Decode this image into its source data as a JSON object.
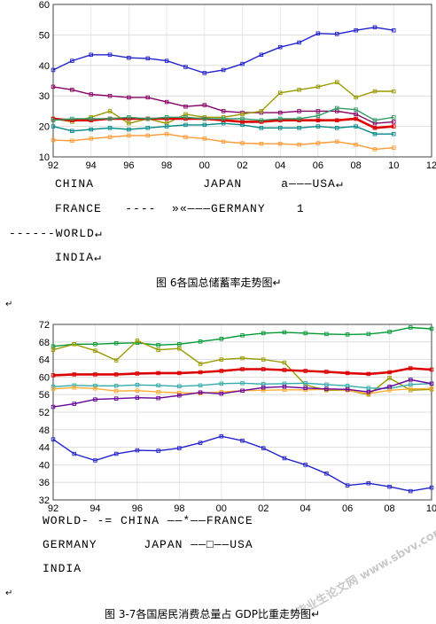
{
  "chart_data": [
    {
      "type": "line",
      "title": "",
      "xlabel": "",
      "ylabel": "",
      "xlim": [
        92,
        112
      ],
      "ylim": [
        10,
        60
      ],
      "x_ticks": [
        "92",
        "94",
        "96",
        "98",
        "00",
        "02",
        "04",
        "06",
        "08",
        "10",
        "12"
      ],
      "y_ticks": [
        "10",
        "20",
        "30",
        "40",
        "50",
        "60"
      ],
      "grid": true,
      "years": [
        "92",
        "93",
        "94",
        "95",
        "96",
        "97",
        "98",
        "99",
        "00",
        "01",
        "02",
        "03",
        "04",
        "05",
        "06",
        "07",
        "08",
        "09",
        "10"
      ],
      "series": [
        {
          "name": "CHINA",
          "color": "#2222cc",
          "values": [
            38.5,
            41.5,
            43.5,
            43.5,
            42.5,
            42.3,
            41.5,
            39.5,
            37.5,
            38.5,
            40.5,
            43.5,
            46,
            47.5,
            50.5,
            50.3,
            51.5,
            52.5,
            51.5
          ]
        },
        {
          "name": "JAPAN",
          "color": "#880066",
          "values": [
            33,
            32,
            30.5,
            30,
            29.5,
            29.5,
            28,
            26.5,
            27,
            25,
            24.5,
            24.5,
            24.5,
            25,
            25,
            25,
            24,
            21,
            21.5
          ]
        },
        {
          "name": "USA",
          "color": "#ff9933",
          "values": [
            15.5,
            15.3,
            16,
            16.5,
            17,
            17,
            17.5,
            16.5,
            16,
            15,
            14.5,
            14.3,
            14.3,
            14,
            14.5,
            15,
            14,
            12.5,
            13
          ]
        },
        {
          "name": "FRANCE",
          "color": "#999900",
          "values": [
            22.5,
            21.5,
            23,
            25,
            21,
            22.5,
            21,
            24,
            23,
            23,
            24,
            25,
            31,
            32,
            33,
            34.5,
            29.5,
            31.5,
            31.5
          ]
        },
        {
          "name": "GERMANY",
          "color": "#008888",
          "values": [
            20,
            18.5,
            19,
            19.5,
            19,
            19.5,
            20,
            20.5,
            20.5,
            21,
            20.5,
            19.5,
            19.5,
            19.5,
            20,
            19.5,
            20,
            17.5,
            17.5
          ]
        },
        {
          "name": "WORLD",
          "color": "#dd0000",
          "values": [
            22.5,
            22,
            22,
            22.5,
            22.5,
            22.5,
            22.5,
            22.5,
            22.5,
            22,
            21.5,
            21.5,
            22,
            22,
            22,
            22,
            22.5,
            19.5,
            20
          ]
        },
        {
          "name": "INDIA",
          "color": "#339966",
          "values": [
            22,
            22.5,
            22.5,
            22.5,
            23,
            22.5,
            23,
            23,
            22.5,
            22.5,
            22.5,
            22,
            22.5,
            22.5,
            23.5,
            26,
            25.5,
            22,
            23
          ]
        }
      ],
      "legend_lines": [
        "CHINA              JAPAN     a———USA↵",
        "FRANCE   ----  »«———GERMANY    1",
        "------WORLD↵",
        "INDIA↵"
      ],
      "caption": "图 6各国总储蓄率走势图↵"
    },
    {
      "type": "line",
      "title": "",
      "xlabel": "",
      "ylabel": "",
      "xlim": [
        92,
        110
      ],
      "ylim": [
        32,
        72
      ],
      "x_ticks": [
        "92",
        "94",
        "96",
        "98",
        "00",
        "02",
        "04",
        "06",
        "08",
        "10"
      ],
      "y_ticks": [
        "32",
        "36",
        "40",
        "44",
        "48",
        "52",
        "56",
        "60",
        "64",
        "68",
        "72"
      ],
      "grid": true,
      "years": [
        "92",
        "93",
        "94",
        "95",
        "96",
        "97",
        "98",
        "99",
        "00",
        "01",
        "02",
        "03",
        "04",
        "05",
        "06",
        "07",
        "08",
        "09",
        "10"
      ],
      "series": [
        {
          "name": "CHINA",
          "color": "#2222cc",
          "values": [
            45.8,
            42.5,
            41,
            42.5,
            43.3,
            43.2,
            43.8,
            45,
            46.5,
            45.5,
            43.8,
            41.5,
            40,
            38,
            35.3,
            35.8,
            35,
            34,
            34.8
          ]
        },
        {
          "name": "USA",
          "color": "#009933",
          "values": [
            67,
            67.5,
            67.5,
            67.7,
            67.8,
            67.3,
            67.5,
            68.1,
            68.7,
            69.5,
            70,
            70.2,
            70,
            69.8,
            69.7,
            69.8,
            70.3,
            71.3,
            71
          ]
        },
        {
          "name": "FRANCE",
          "color": "#999900",
          "values": [
            66.2,
            67.5,
            66,
            63.8,
            68.3,
            66.2,
            66.5,
            63,
            64,
            64.3,
            64,
            63.3,
            58.2,
            57,
            57,
            56,
            59.8,
            57,
            57.2
          ]
        },
        {
          "name": "WORLD",
          "color": "#dd0000",
          "values": [
            60.4,
            60.6,
            60.6,
            60.6,
            60.8,
            60.9,
            60.9,
            61.1,
            61.4,
            61.8,
            61.8,
            61.6,
            61.4,
            61.2,
            60.9,
            60.7,
            61.1,
            62,
            61.7
          ]
        },
        {
          "name": "GERMANY",
          "color": "#33aaaa",
          "values": [
            57.8,
            58.1,
            58,
            58,
            58.2,
            58.1,
            57.9,
            58.1,
            58.5,
            58.6,
            58.4,
            58.5,
            58.6,
            58.3,
            58,
            57.5,
            57.4,
            58.3,
            58.5
          ]
        },
        {
          "name": "JAPAN",
          "color": "#ffaa33",
          "values": [
            57.3,
            57.6,
            57.4,
            56.8,
            56.9,
            56.6,
            56.4,
            56.3,
            56.6,
            56.9,
            57,
            57.1,
            57.1,
            57.2,
            57,
            56.2,
            57,
            57.3,
            57.4
          ]
        },
        {
          "name": "INDIA",
          "color": "#660099",
          "values": [
            53.2,
            53.9,
            54.9,
            55.1,
            55.3,
            55.2,
            55.8,
            56.5,
            56.2,
            56.9,
            57.6,
            57.8,
            57.5,
            57.3,
            57.2,
            56.6,
            57.8,
            59.4,
            58.5
          ]
        }
      ],
      "legend_lines": [
        "WORLD- -= CHINA ——*——FRANCE",
        "GERMANY      JAPAN ——□——USA",
        "INDIA"
      ],
      "caption": "图 3-7各国居民消费总量占 GDP比重走势图↵"
    }
  ],
  "page": {
    "return_mark_1": "↵",
    "return_mark_2": "↵",
    "watermark": "毕业生论文网 www.sbvv.com"
  }
}
